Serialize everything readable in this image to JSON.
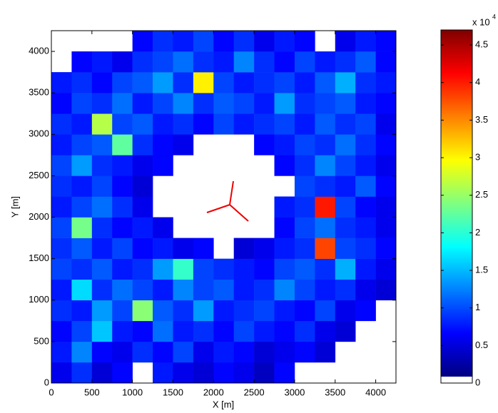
{
  "chart_data": {
    "type": "heatmap",
    "xlabel": "X [m]",
    "ylabel": "Y [m]",
    "xlim": [
      0,
      4250
    ],
    "ylim": [
      0,
      4250
    ],
    "xticks": [
      0,
      500,
      1000,
      1500,
      2000,
      2500,
      3000,
      3500,
      4000
    ],
    "yticks": [
      0,
      500,
      1000,
      1500,
      2000,
      2500,
      3000,
      3500,
      4000
    ],
    "xbins": [
      0,
      250,
      500,
      750,
      1000,
      1250,
      1500,
      1750,
      2000,
      2250,
      2500,
      2750,
      3000,
      3250,
      3500,
      3750,
      4000,
      4250
    ],
    "ybins": [
      0,
      250,
      500,
      750,
      1000,
      1250,
      1500,
      1750,
      2000,
      2250,
      2500,
      2750,
      3000,
      3250,
      3500,
      3750,
      4000,
      4250
    ],
    "colormap": "jet",
    "clim": [
      0,
      4.7
    ],
    "cticks": [
      0,
      0.5,
      1,
      1.5,
      2,
      2.5,
      3,
      3.5,
      4,
      4.5
    ],
    "colorbar_multiplier": "x 10",
    "colorbar_exponent": "4",
    "z": [
      [
        0.5,
        0.8,
        0.4,
        0.6,
        null,
        0.7,
        0.5,
        0.4,
        0.6,
        0.5,
        0.3,
        0.6,
        null,
        null,
        null,
        null,
        null
      ],
      [
        0.7,
        1.2,
        0.6,
        0.5,
        0.8,
        0.6,
        0.9,
        0.5,
        0.7,
        0.6,
        0.4,
        0.5,
        0.6,
        0.4,
        null,
        null,
        null
      ],
      [
        0.6,
        0.9,
        1.5,
        0.7,
        0.6,
        1.1,
        0.7,
        0.8,
        0.6,
        0.9,
        0.7,
        0.6,
        0.8,
        0.5,
        0.4,
        null,
        null
      ],
      [
        0.8,
        0.7,
        1.3,
        0.9,
        2.4,
        1.0,
        0.8,
        1.3,
        0.7,
        0.8,
        0.9,
        0.7,
        0.6,
        0.9,
        0.5,
        0.6,
        null
      ],
      [
        0.7,
        1.6,
        0.8,
        1.1,
        0.9,
        0.7,
        1.2,
        0.9,
        1.0,
        0.7,
        0.8,
        1.2,
        0.9,
        0.7,
        0.8,
        0.5,
        0.4
      ],
      [
        0.9,
        0.8,
        1.0,
        0.7,
        0.8,
        1.3,
        2.0,
        0.9,
        0.8,
        0.7,
        0.6,
        0.9,
        1.0,
        0.8,
        1.4,
        0.7,
        0.5
      ],
      [
        0.8,
        1.0,
        0.7,
        0.9,
        0.6,
        0.7,
        0.5,
        0.6,
        null,
        0.4,
        0.5,
        0.7,
        0.8,
        3.8,
        0.9,
        0.8,
        0.6
      ],
      [
        0.9,
        2.3,
        0.8,
        0.6,
        0.7,
        0.5,
        null,
        null,
        null,
        null,
        null,
        0.6,
        0.9,
        1.1,
        0.8,
        0.7,
        0.5
      ],
      [
        0.7,
        0.9,
        1.1,
        0.8,
        0.5,
        null,
        null,
        null,
        null,
        null,
        null,
        0.7,
        0.8,
        4.0,
        0.9,
        0.6,
        0.5
      ],
      [
        0.8,
        0.7,
        0.9,
        0.6,
        0.4,
        null,
        null,
        null,
        null,
        null,
        null,
        null,
        0.9,
        0.8,
        0.7,
        1.0,
        0.6
      ],
      [
        0.9,
        1.3,
        0.8,
        0.7,
        0.5,
        0.6,
        null,
        null,
        null,
        null,
        null,
        0.6,
        0.8,
        1.2,
        0.9,
        0.7,
        0.5
      ],
      [
        0.7,
        0.9,
        1.0,
        2.2,
        0.8,
        0.6,
        0.5,
        null,
        null,
        null,
        0.6,
        0.7,
        0.9,
        0.8,
        1.1,
        0.8,
        0.6
      ],
      [
        0.8,
        0.7,
        2.6,
        0.9,
        1.0,
        0.7,
        0.8,
        0.6,
        0.9,
        0.7,
        0.8,
        0.9,
        0.7,
        1.0,
        0.8,
        0.9,
        0.5
      ],
      [
        0.6,
        0.9,
        0.8,
        1.1,
        0.7,
        0.9,
        1.2,
        0.8,
        1.0,
        0.9,
        0.7,
        1.3,
        0.8,
        0.9,
        1.0,
        0.7,
        0.6
      ],
      [
        0.7,
        0.8,
        0.6,
        0.9,
        1.0,
        1.3,
        0.8,
        3.0,
        0.9,
        0.7,
        0.8,
        0.9,
        0.7,
        1.0,
        1.4,
        0.8,
        0.7
      ],
      [
        null,
        0.6,
        0.7,
        0.5,
        0.8,
        0.9,
        1.1,
        0.8,
        0.7,
        1.2,
        0.8,
        0.6,
        0.9,
        0.7,
        0.8,
        1.0,
        0.6
      ],
      [
        null,
        null,
        null,
        null,
        0.6,
        0.8,
        0.7,
        0.9,
        0.6,
        0.8,
        0.5,
        0.7,
        0.6,
        null,
        0.5,
        0.7,
        0.6
      ]
    ]
  }
}
